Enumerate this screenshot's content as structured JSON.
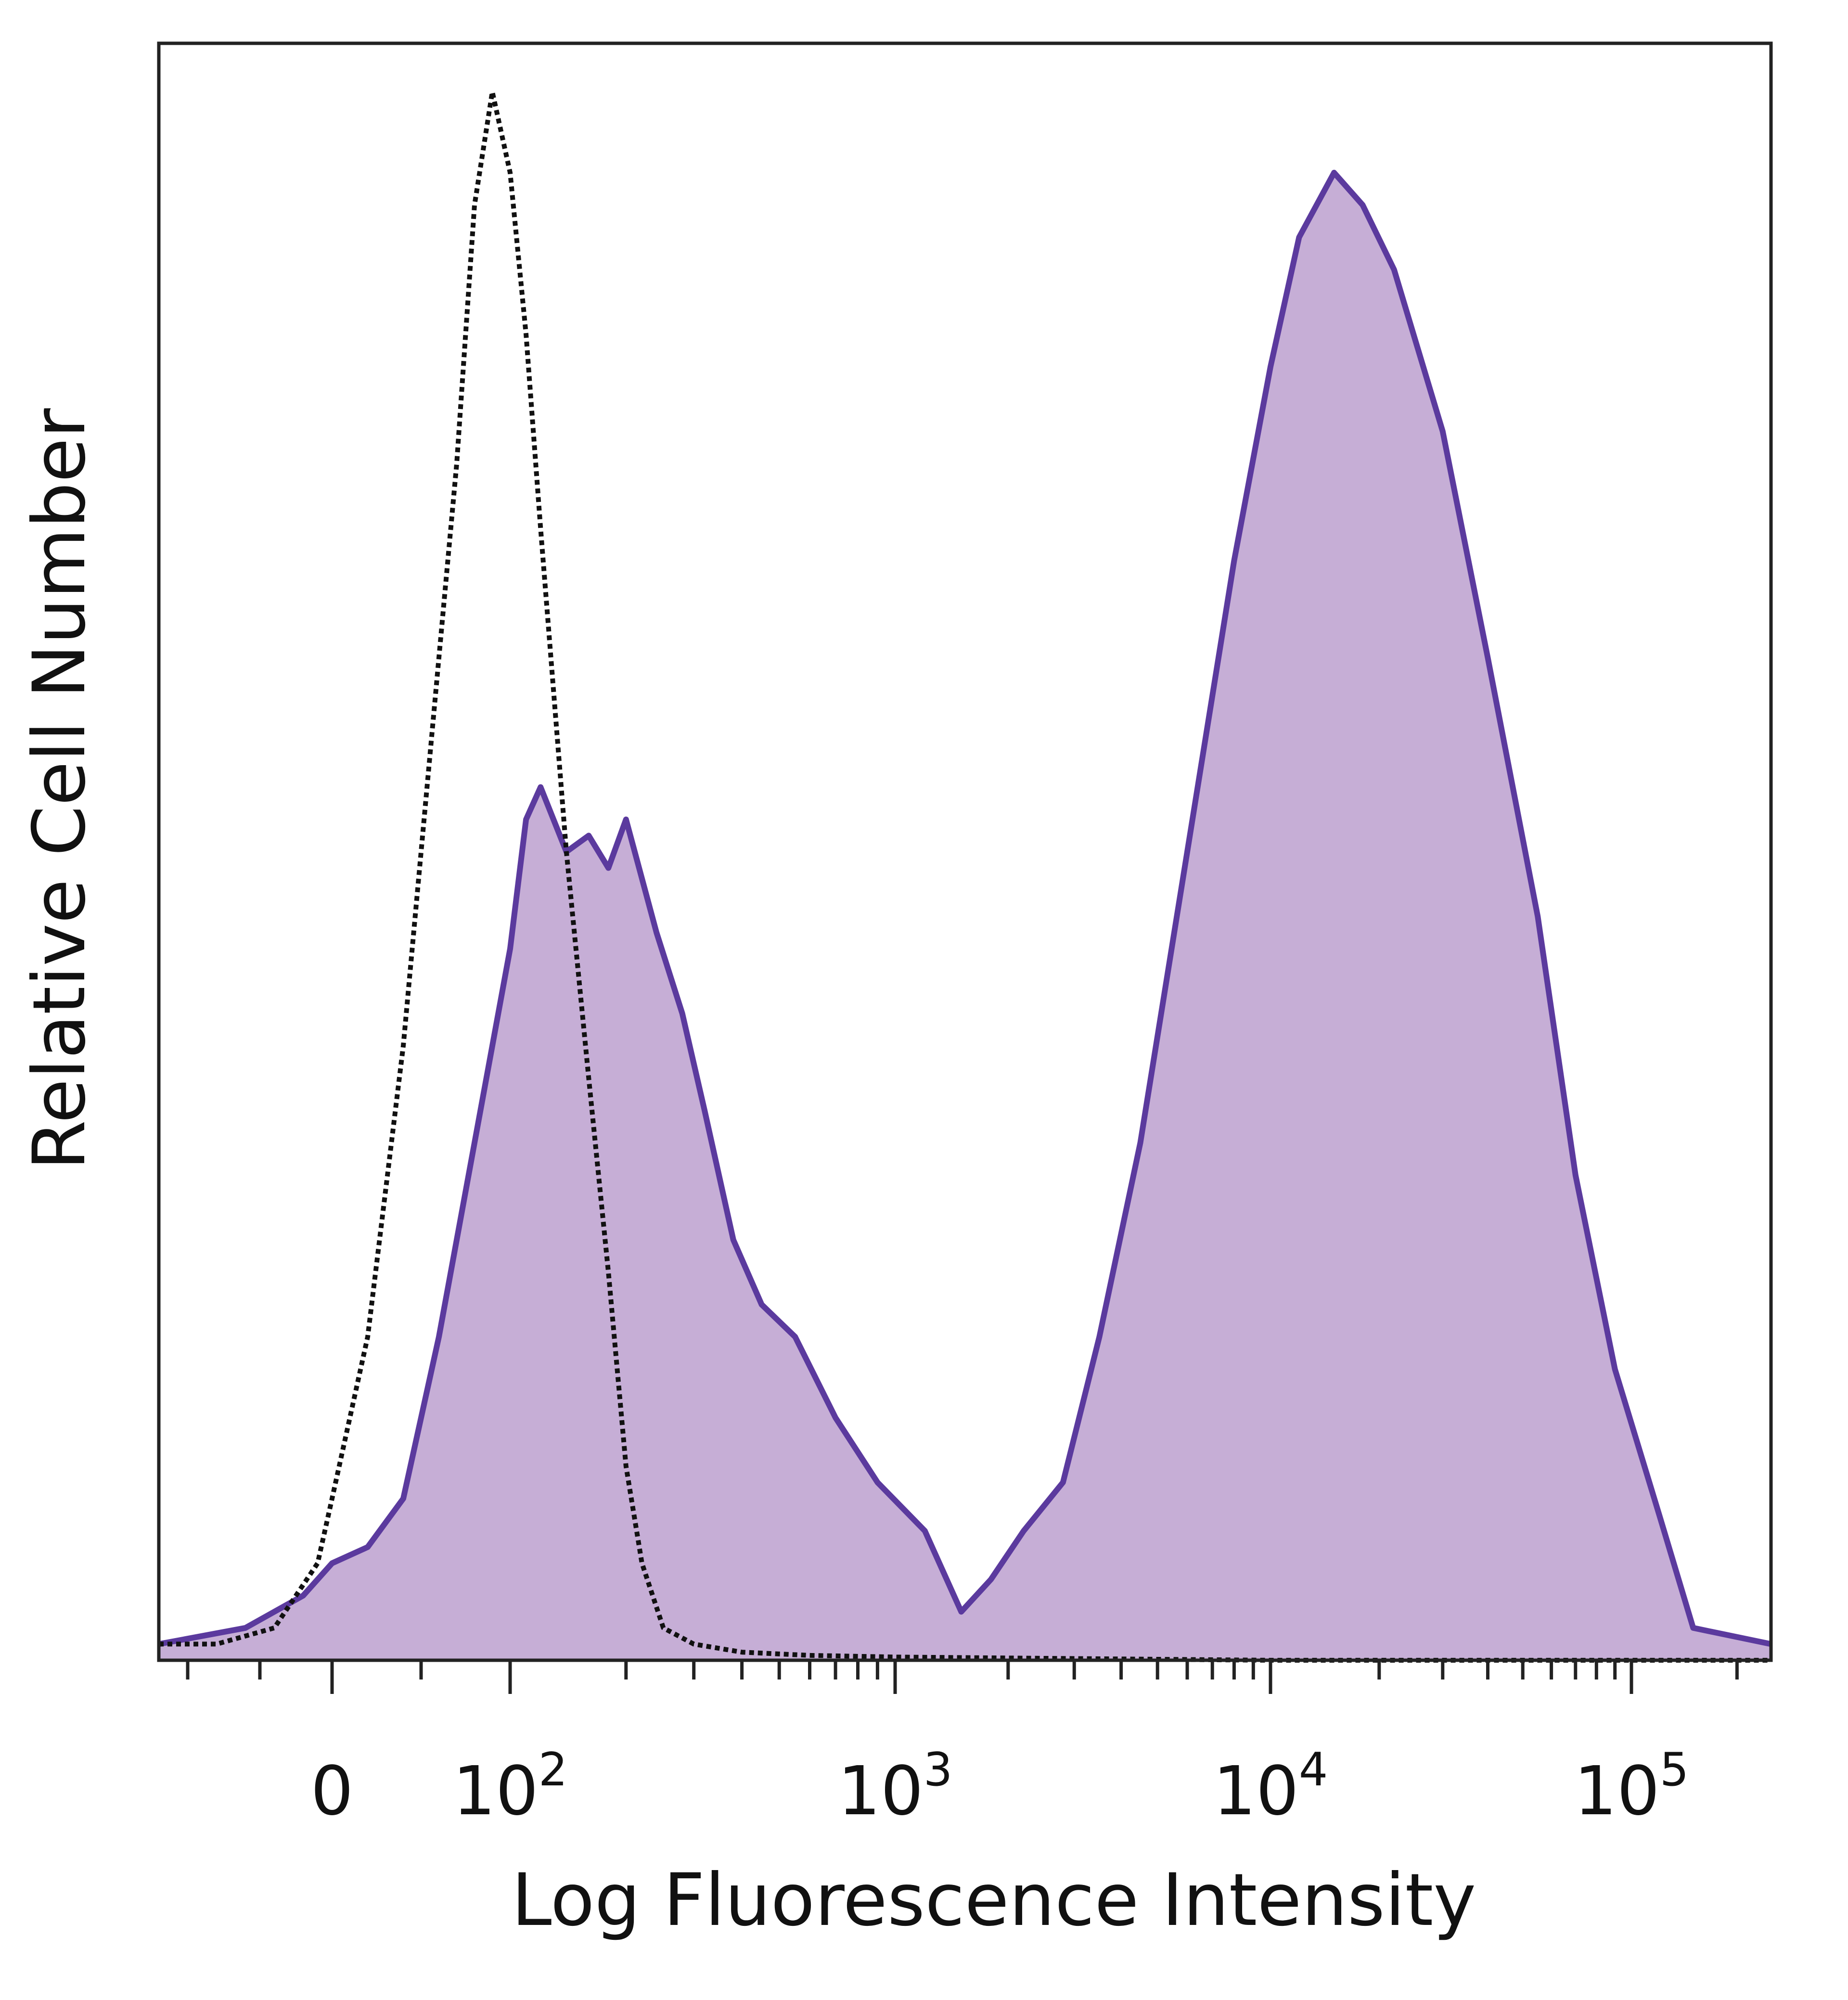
{
  "chart_data": {
    "type": "area",
    "title": "",
    "xlabel": "Log Fluorescence Intensity",
    "ylabel": "Relative Cell Number",
    "x_scale": "biexponential",
    "x_range": [
      -120,
      250000
    ],
    "y_range": [
      0,
      100
    ],
    "y_unit": "relative count (percent of panel height)",
    "grid": false,
    "legend": "none",
    "x_tick_labels": [
      {
        "value": 0,
        "label": "0",
        "base": "0",
        "exp": ""
      },
      {
        "value": 100,
        "label": "10^2",
        "base": "10",
        "exp": "2"
      },
      {
        "value": 1000,
        "label": "10^3",
        "base": "10",
        "exp": "3"
      },
      {
        "value": 10000,
        "label": "10^4",
        "base": "10",
        "exp": "4"
      },
      {
        "value": 100000,
        "label": "10^5",
        "base": "10",
        "exp": "5"
      }
    ],
    "series": [
      {
        "style": "dotted-outline",
        "color": "#111111",
        "x": [
          -120,
          -80,
          -40,
          -10,
          0,
          20,
          40,
          55,
          70,
          80,
          90,
          100,
          110,
          120,
          140,
          160,
          180,
          200,
          220,
          250,
          300,
          400,
          600,
          1000,
          10000,
          250000
        ],
        "y": [
          1,
          1,
          2,
          6,
          10,
          20,
          38,
          56,
          74,
          90,
          97,
          92,
          82,
          70,
          50,
          36,
          24,
          12,
          6,
          2,
          1,
          0.5,
          0.3,
          0.2,
          0,
          0
        ]
      },
      {
        "style": "filled",
        "color": "#5b3a9e",
        "fill": "#c6aed6",
        "x": [
          -120,
          -60,
          -20,
          0,
          20,
          40,
          60,
          80,
          100,
          110,
          120,
          140,
          160,
          180,
          200,
          240,
          280,
          320,
          380,
          450,
          550,
          700,
          900,
          1200,
          1500,
          1800,
          2200,
          2800,
          3500,
          4500,
          6000,
          8000,
          10000,
          12000,
          15000,
          18000,
          22000,
          30000,
          40000,
          55000,
          70000,
          90000,
          120000,
          150000,
          250000
        ],
        "y": [
          1,
          2,
          4,
          6,
          7,
          10,
          20,
          32,
          44,
          52,
          54,
          50,
          51,
          49,
          52,
          45,
          40,
          34,
          26,
          22,
          20,
          15,
          11,
          8,
          3,
          5,
          8,
          11,
          20,
          32,
          50,
          68,
          80,
          88,
          92,
          90,
          86,
          76,
          62,
          46,
          30,
          18,
          9,
          2,
          1
        ]
      }
    ]
  }
}
